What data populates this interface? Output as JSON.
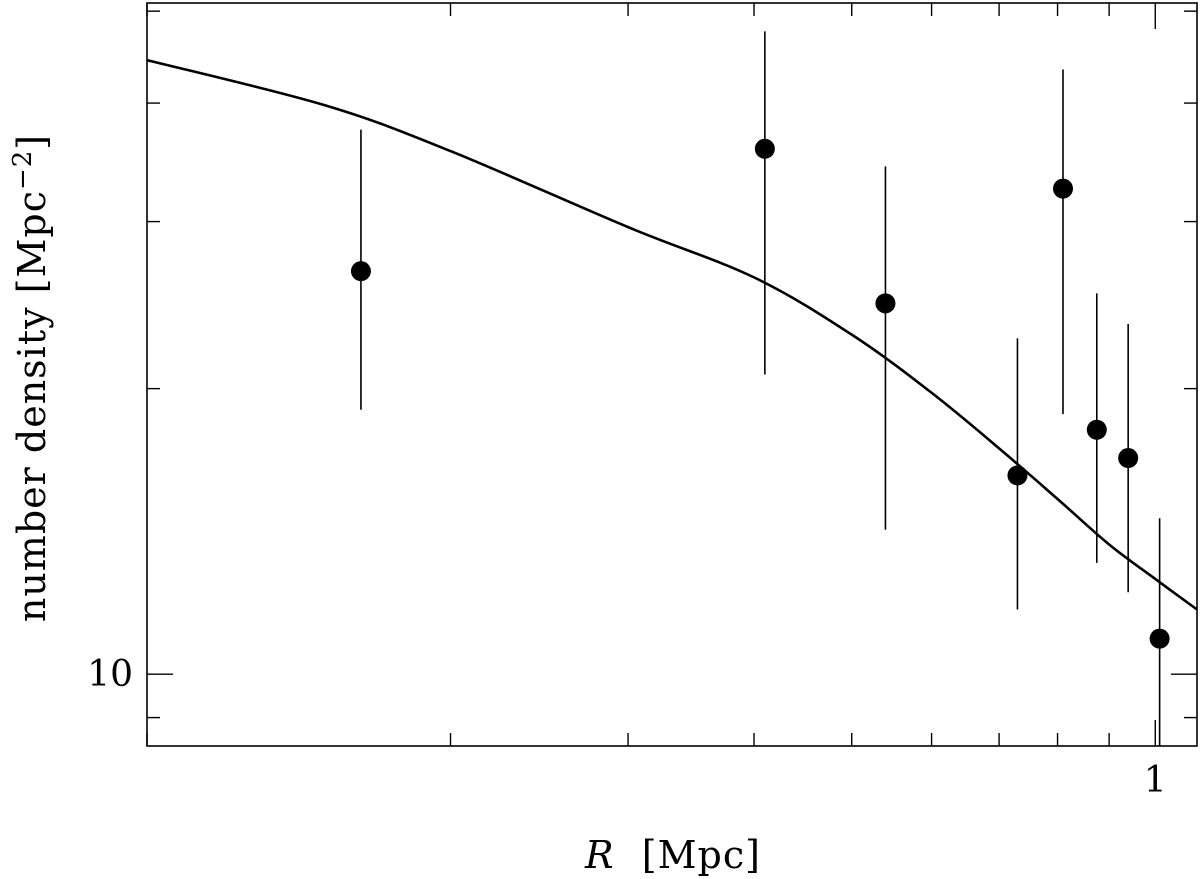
{
  "chart_data": {
    "type": "scatter",
    "title": "",
    "xlabel": {
      "symbol": "R",
      "unit": "[Mpc]"
    },
    "ylabel": {
      "text": "number density [Mpc",
      "exponent": "−2",
      "close": "]"
    },
    "xscale": "log",
    "yscale": "log",
    "xlim": [
      0.1,
      1.1
    ],
    "ylim": [
      8.4,
      51
    ],
    "x_tick_labels": [
      {
        "value": 1,
        "label": "1"
      }
    ],
    "y_tick_labels": [
      {
        "value": 10,
        "label": "10"
      }
    ],
    "grid": false,
    "legend": "none",
    "series": [
      {
        "kind": "points_with_errorbars",
        "points": [
          {
            "x": 0.163,
            "y": 26.6,
            "ylow": 19.0,
            "yhigh": 37.5
          },
          {
            "x": 0.41,
            "y": 35.8,
            "ylow": 20.7,
            "yhigh": 47.6
          },
          {
            "x": 0.54,
            "y": 24.6,
            "ylow": 14.2,
            "yhigh": 34.3
          },
          {
            "x": 0.73,
            "y": 16.2,
            "ylow": 11.7,
            "yhigh": 22.6
          },
          {
            "x": 0.81,
            "y": 32.5,
            "ylow": 18.8,
            "yhigh": 43.4
          },
          {
            "x": 0.875,
            "y": 18.1,
            "ylow": 13.1,
            "yhigh": 25.2
          },
          {
            "x": 0.94,
            "y": 16.9,
            "ylow": 12.2,
            "yhigh": 23.4
          },
          {
            "x": 1.01,
            "y": 10.9,
            "ylow": 7.9,
            "yhigh": 14.6
          }
        ]
      },
      {
        "kind": "line",
        "x": [
          0.1,
          0.15,
          0.2,
          0.3,
          0.4,
          0.5,
          0.6,
          0.7,
          0.8,
          0.9,
          1.0,
          1.1
        ],
        "y": [
          44.4,
          39.8,
          35.6,
          29.6,
          26.2,
          22.8,
          19.8,
          17.3,
          15.3,
          13.7,
          12.6,
          11.7
        ]
      }
    ]
  }
}
